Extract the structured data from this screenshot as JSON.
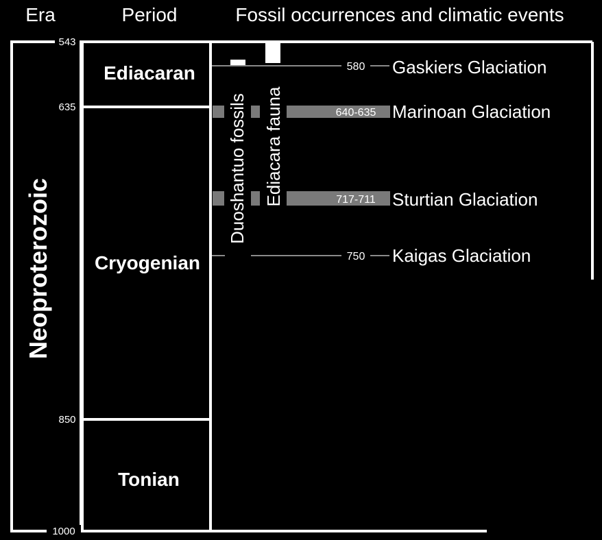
{
  "headers": {
    "era": "Era",
    "period": "Period",
    "events": "Fossil occurrences and climatic events"
  },
  "era": {
    "name": "Neoproterozoic",
    "start_ma": 1000,
    "end_ma": 543
  },
  "boundaries": [
    {
      "ma": 543,
      "label": "543"
    },
    {
      "ma": 635,
      "label": "635"
    },
    {
      "ma": 850,
      "label": "850"
    },
    {
      "ma": 1000,
      "label": "1000"
    }
  ],
  "periods": [
    {
      "name": "Ediacaran",
      "start_ma": 635,
      "end_ma": 543
    },
    {
      "name": "Cryogenian",
      "start_ma": 850,
      "end_ma": 635
    },
    {
      "name": "Tonian",
      "start_ma": 1000,
      "end_ma": 850
    }
  ],
  "fossils": [
    {
      "name": "Duoshantuo fossils"
    },
    {
      "name": "Ediacara fauna"
    }
  ],
  "glaciations": [
    {
      "name": "Gaskiers Glaciation",
      "age_label": "580",
      "kind": "line"
    },
    {
      "name": "Marinoan Glaciation",
      "age_label": "640-635",
      "kind": "band"
    },
    {
      "name": "Sturtian Glaciation",
      "age_label": "717-711",
      "kind": "band"
    },
    {
      "name": "Kaigas Glaciation",
      "age_label": "750",
      "kind": "line"
    }
  ],
  "colors": {
    "background": "#000000",
    "frame": "#ffffff",
    "band": "#7a7a7a",
    "line": "#8a8a8a"
  }
}
